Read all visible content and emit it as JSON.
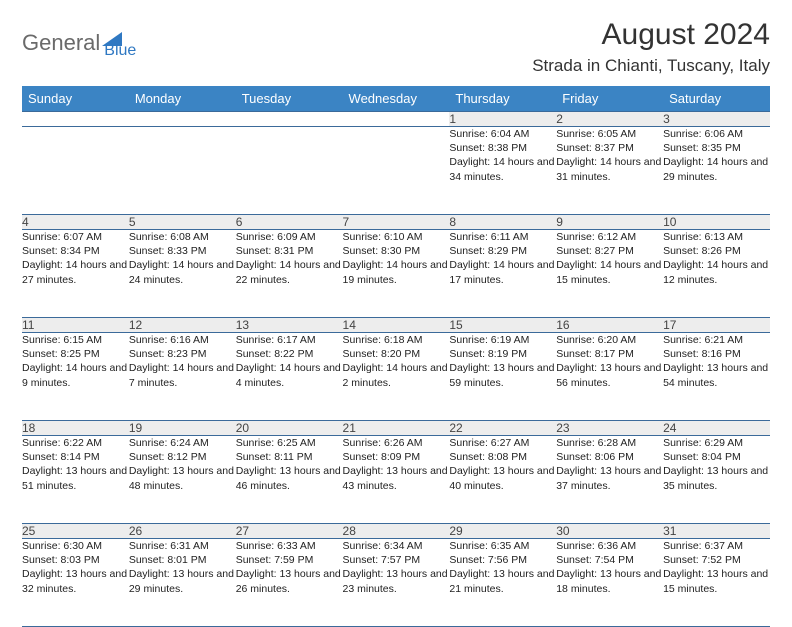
{
  "logo": {
    "part1": "General",
    "part2": "Blue"
  },
  "title": "August 2024",
  "location": "Strada in Chianti, Tuscany, Italy",
  "colors": {
    "header_bg": "#3b84c4",
    "header_text": "#ffffff",
    "daynum_bg": "#ededed",
    "rule": "#3b6a9a",
    "logo_gray": "#6a6a6a",
    "logo_blue": "#2f78c2"
  },
  "day_headers": [
    "Sunday",
    "Monday",
    "Tuesday",
    "Wednesday",
    "Thursday",
    "Friday",
    "Saturday"
  ],
  "weeks": [
    [
      null,
      null,
      null,
      null,
      {
        "n": "1",
        "sr": "6:04 AM",
        "ss": "8:38 PM",
        "dl": "14 hours and 34 minutes."
      },
      {
        "n": "2",
        "sr": "6:05 AM",
        "ss": "8:37 PM",
        "dl": "14 hours and 31 minutes."
      },
      {
        "n": "3",
        "sr": "6:06 AM",
        "ss": "8:35 PM",
        "dl": "14 hours and 29 minutes."
      }
    ],
    [
      {
        "n": "4",
        "sr": "6:07 AM",
        "ss": "8:34 PM",
        "dl": "14 hours and 27 minutes."
      },
      {
        "n": "5",
        "sr": "6:08 AM",
        "ss": "8:33 PM",
        "dl": "14 hours and 24 minutes."
      },
      {
        "n": "6",
        "sr": "6:09 AM",
        "ss": "8:31 PM",
        "dl": "14 hours and 22 minutes."
      },
      {
        "n": "7",
        "sr": "6:10 AM",
        "ss": "8:30 PM",
        "dl": "14 hours and 19 minutes."
      },
      {
        "n": "8",
        "sr": "6:11 AM",
        "ss": "8:29 PM",
        "dl": "14 hours and 17 minutes."
      },
      {
        "n": "9",
        "sr": "6:12 AM",
        "ss": "8:27 PM",
        "dl": "14 hours and 15 minutes."
      },
      {
        "n": "10",
        "sr": "6:13 AM",
        "ss": "8:26 PM",
        "dl": "14 hours and 12 minutes."
      }
    ],
    [
      {
        "n": "11",
        "sr": "6:15 AM",
        "ss": "8:25 PM",
        "dl": "14 hours and 9 minutes."
      },
      {
        "n": "12",
        "sr": "6:16 AM",
        "ss": "8:23 PM",
        "dl": "14 hours and 7 minutes."
      },
      {
        "n": "13",
        "sr": "6:17 AM",
        "ss": "8:22 PM",
        "dl": "14 hours and 4 minutes."
      },
      {
        "n": "14",
        "sr": "6:18 AM",
        "ss": "8:20 PM",
        "dl": "14 hours and 2 minutes."
      },
      {
        "n": "15",
        "sr": "6:19 AM",
        "ss": "8:19 PM",
        "dl": "13 hours and 59 minutes."
      },
      {
        "n": "16",
        "sr": "6:20 AM",
        "ss": "8:17 PM",
        "dl": "13 hours and 56 minutes."
      },
      {
        "n": "17",
        "sr": "6:21 AM",
        "ss": "8:16 PM",
        "dl": "13 hours and 54 minutes."
      }
    ],
    [
      {
        "n": "18",
        "sr": "6:22 AM",
        "ss": "8:14 PM",
        "dl": "13 hours and 51 minutes."
      },
      {
        "n": "19",
        "sr": "6:24 AM",
        "ss": "8:12 PM",
        "dl": "13 hours and 48 minutes."
      },
      {
        "n": "20",
        "sr": "6:25 AM",
        "ss": "8:11 PM",
        "dl": "13 hours and 46 minutes."
      },
      {
        "n": "21",
        "sr": "6:26 AM",
        "ss": "8:09 PM",
        "dl": "13 hours and 43 minutes."
      },
      {
        "n": "22",
        "sr": "6:27 AM",
        "ss": "8:08 PM",
        "dl": "13 hours and 40 minutes."
      },
      {
        "n": "23",
        "sr": "6:28 AM",
        "ss": "8:06 PM",
        "dl": "13 hours and 37 minutes."
      },
      {
        "n": "24",
        "sr": "6:29 AM",
        "ss": "8:04 PM",
        "dl": "13 hours and 35 minutes."
      }
    ],
    [
      {
        "n": "25",
        "sr": "6:30 AM",
        "ss": "8:03 PM",
        "dl": "13 hours and 32 minutes."
      },
      {
        "n": "26",
        "sr": "6:31 AM",
        "ss": "8:01 PM",
        "dl": "13 hours and 29 minutes."
      },
      {
        "n": "27",
        "sr": "6:33 AM",
        "ss": "7:59 PM",
        "dl": "13 hours and 26 minutes."
      },
      {
        "n": "28",
        "sr": "6:34 AM",
        "ss": "7:57 PM",
        "dl": "13 hours and 23 minutes."
      },
      {
        "n": "29",
        "sr": "6:35 AM",
        "ss": "7:56 PM",
        "dl": "13 hours and 21 minutes."
      },
      {
        "n": "30",
        "sr": "6:36 AM",
        "ss": "7:54 PM",
        "dl": "13 hours and 18 minutes."
      },
      {
        "n": "31",
        "sr": "6:37 AM",
        "ss": "7:52 PM",
        "dl": "13 hours and 15 minutes."
      }
    ]
  ],
  "labels": {
    "sunrise": "Sunrise:",
    "sunset": "Sunset:",
    "daylight": "Daylight:"
  }
}
